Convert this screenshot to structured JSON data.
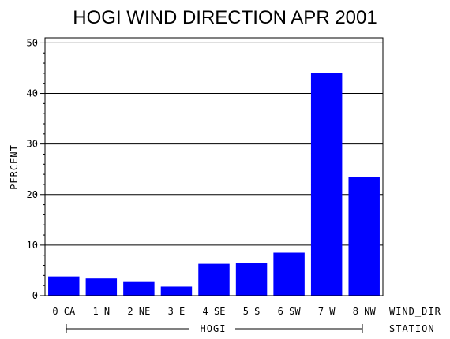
{
  "chart_data": {
    "type": "bar",
    "title": "HOGI WIND DIRECTION APR 2001",
    "ylabel": "PERCENT",
    "xlabel": "WIND_DIR",
    "group_axis_label": "STATION",
    "group_label": "HOGI",
    "categories": [
      "0 CA",
      "1 N",
      "2 NE",
      "3 E",
      "4 SE",
      "5 S",
      "6 SW",
      "7 W",
      "8 NW"
    ],
    "values": [
      3.8,
      3.4,
      2.7,
      1.8,
      6.3,
      6.5,
      8.5,
      44.0,
      23.5
    ],
    "ylim": [
      0,
      51
    ],
    "yticks": [
      0,
      10,
      20,
      30,
      40,
      50
    ],
    "grid": true,
    "bar_color": "#0000ff"
  }
}
